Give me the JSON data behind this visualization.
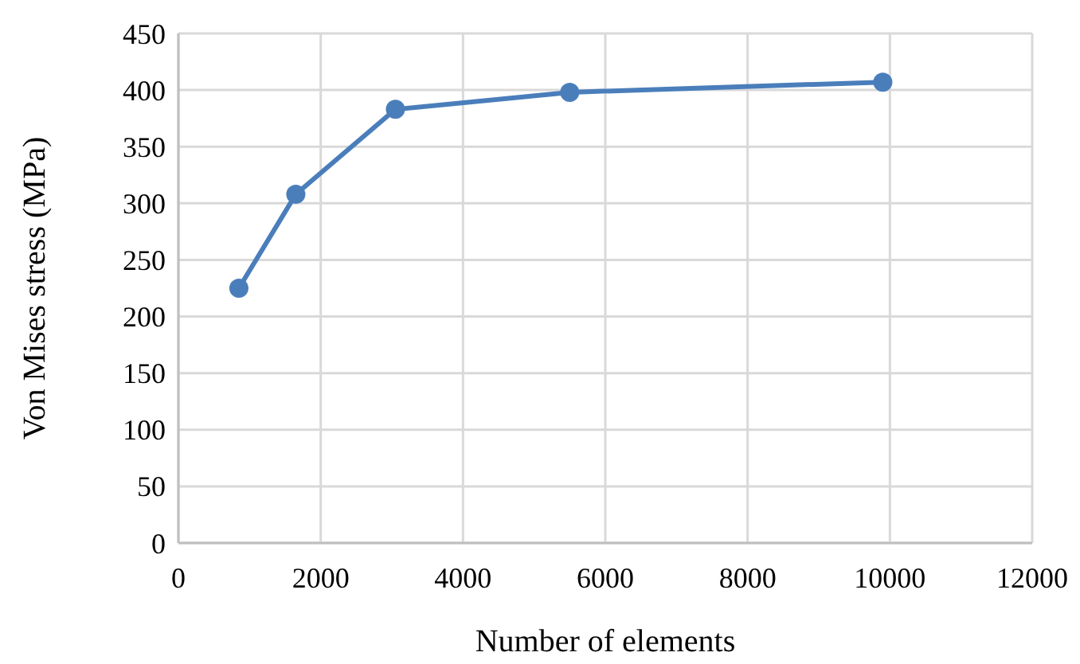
{
  "chart_data": {
    "type": "line",
    "xlabel": "Number of elements",
    "ylabel": "Von Mises stress (MPa)",
    "x": [
      850,
      1650,
      3050,
      5500,
      9900
    ],
    "series": [
      {
        "color": "#4a7ebb",
        "values": [
          225,
          308,
          383,
          398,
          407
        ]
      }
    ],
    "xlim": [
      0,
      12000
    ],
    "xticks": [
      0,
      2000,
      4000,
      6000,
      8000,
      10000,
      12000
    ],
    "ylim": [
      0,
      450
    ],
    "yticks": [
      0,
      50,
      100,
      150,
      200,
      250,
      300,
      350,
      400,
      450
    ],
    "grid": true,
    "marker": "circle",
    "line_style": "solid"
  }
}
